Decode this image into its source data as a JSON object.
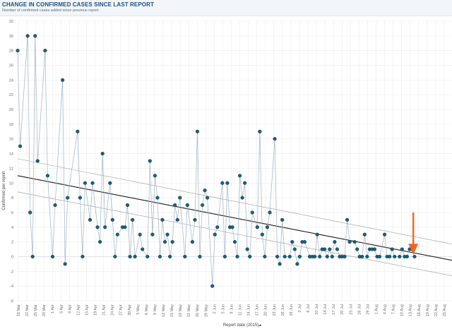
{
  "header": {
    "title": "CHANGE IN CONFIRMED CASES SINCE LAST REPORT",
    "subtitle": "Number of confirmed cases added since previous report"
  },
  "colors": {
    "series_line": "#9fb3c2",
    "point_fill": "#1b5e78",
    "point_stroke": "#0d3b4e",
    "trend": "#1a1a1a",
    "ci": "#9a9a9a",
    "grid": "#ececec",
    "arrow": "#f26522"
  },
  "icons": {
    "pin": "pin-icon"
  },
  "chart_data": {
    "type": "scatter",
    "title": "CHANGE IN CONFIRMED CASES SINCE LAST REPORT",
    "subtitle": "Number of confirmed cases added since previous report",
    "xlabel": "Report date (2015)",
    "ylabel": "Confirmed per report",
    "ylim": [
      -6,
      32
    ],
    "yticks": [
      -6,
      -4,
      -2,
      0,
      2,
      4,
      6,
      8,
      10,
      12,
      14,
      16,
      18,
      20,
      22,
      24,
      26,
      28,
      30,
      32
    ],
    "xlim": [
      0,
      174
    ],
    "x_tick_labels": [
      "18 Mar",
      "22 Mar",
      "25 Mar",
      "29 Mar",
      "1 Apr",
      "5 Apr",
      "9 Apr",
      "12 Apr",
      "15 Apr",
      "18 Apr",
      "21 Apr",
      "24 Apr",
      "27 Apr",
      "30 Apr",
      "3 May",
      "6 May",
      "9 May",
      "12 May",
      "15 May",
      "19 May",
      "22 May",
      "26 May",
      "29 May",
      "2 Jun",
      "5 Jun",
      "8 Jun",
      "11 Jun",
      "14 Jun",
      "17 Jun",
      "20 Jun",
      "23 Jun",
      "26 Jun",
      "29 Jun",
      "3 Jul",
      "6 Jul",
      "10 Jul",
      "14 Jul",
      "17 Jul",
      "20 Jul",
      "23 Jul",
      "26 Jul",
      "29 Jul",
      "1 Aug",
      "4 Aug",
      "7 Aug",
      "10 Aug",
      "13 Aug",
      "16 Aug",
      "19 Aug",
      "22 Aug",
      "25 Aug"
    ],
    "grid": true,
    "series": [
      {
        "name": "Confirmed per report",
        "x": [
          0,
          1,
          4,
          5,
          6,
          7,
          8,
          11,
          12,
          14,
          15,
          18,
          19,
          20,
          24,
          25,
          26,
          27,
          29,
          30,
          32,
          33,
          34,
          35,
          37,
          38,
          39,
          40,
          42,
          43,
          44,
          45,
          46,
          47,
          49,
          50,
          52,
          53,
          54,
          55,
          56,
          57,
          58,
          59,
          60,
          61,
          62,
          63,
          64,
          65,
          67,
          68,
          70,
          71,
          72,
          73,
          74,
          75,
          76,
          78,
          79,
          80,
          82,
          83,
          84,
          85,
          86,
          87,
          88,
          89,
          90,
          91,
          92,
          93,
          94,
          96,
          97,
          98,
          99,
          100,
          101,
          103,
          104,
          105,
          106,
          107,
          109,
          110,
          111,
          112,
          113,
          114,
          115,
          117,
          118,
          119,
          120,
          121,
          122,
          123,
          124,
          125,
          126,
          127,
          128,
          129,
          130,
          131,
          132,
          133,
          135,
          136,
          137,
          138,
          139,
          140,
          141,
          142,
          143,
          144,
          145,
          147,
          148,
          149,
          150,
          151,
          153,
          154,
          155,
          156,
          157,
          158,
          159
        ],
        "y": [
          28,
          15,
          30,
          6,
          0,
          30,
          13,
          28,
          11,
          0,
          7,
          24,
          -1,
          8,
          17,
          8,
          0,
          10,
          5,
          10,
          4,
          2,
          14,
          4,
          10,
          5,
          0,
          3,
          4,
          4,
          7,
          0,
          5,
          0,
          3,
          1,
          0,
          13,
          3,
          11,
          8,
          0,
          5,
          2,
          3,
          0,
          2,
          7,
          5,
          8,
          0,
          7,
          2,
          5,
          17,
          0,
          7,
          9,
          8,
          -4,
          3,
          4,
          10,
          0,
          10,
          4,
          4,
          2,
          0,
          11,
          8,
          10,
          1,
          0,
          6,
          4,
          17,
          3,
          0,
          4,
          6,
          16,
          0,
          -1,
          5,
          0,
          0,
          2,
          1,
          -1,
          0,
          2,
          2,
          0,
          0,
          0,
          3,
          0,
          1,
          1,
          0,
          1,
          0,
          2,
          1,
          0,
          0,
          0,
          5,
          2,
          2,
          1,
          0,
          0,
          3,
          0,
          1,
          1,
          1,
          0,
          0,
          3,
          0,
          0,
          1,
          0,
          0,
          1,
          0,
          0,
          1,
          1,
          0
        ]
      }
    ],
    "trend": {
      "x": [
        0,
        174
      ],
      "y": [
        11,
        -0.5
      ]
    },
    "confidence_band": {
      "upper": {
        "x": [
          0,
          174
        ],
        "y": [
          13.3,
          1.7
        ]
      },
      "lower": {
        "x": [
          0,
          174
        ],
        "y": [
          8.8,
          -2.6
        ]
      }
    },
    "annotations": [
      {
        "type": "arrow",
        "color": "#f26522",
        "x": 158.5,
        "y_from": 6,
        "y_to": 0.3
      }
    ]
  }
}
